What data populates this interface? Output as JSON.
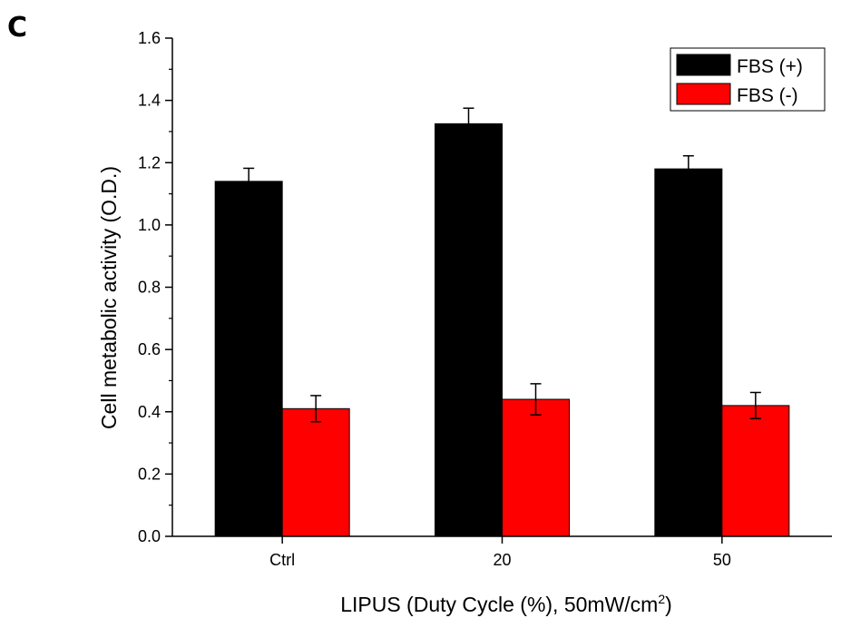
{
  "panel_label": "C",
  "chart_data": {
    "type": "bar",
    "categories": [
      "Ctrl",
      "20",
      "50"
    ],
    "series": [
      {
        "name": "FBS (+)",
        "color": "#000000",
        "values": [
          1.14,
          1.325,
          1.18
        ],
        "errors": [
          0.042,
          0.05,
          0.042
        ]
      },
      {
        "name": "FBS (-)",
        "color": "#ff0000",
        "values": [
          0.41,
          0.44,
          0.42
        ],
        "errors": [
          0.042,
          0.05,
          0.042
        ]
      }
    ],
    "xlabel": {
      "main": "LIPUS (Duty Cycle (%), 50mW/cm",
      "superscript": "2",
      "close": ")"
    },
    "ylabel": "Cell metabolic activity (O.D.)",
    "ylim": [
      0,
      1.6
    ],
    "yticks": [
      "0.0",
      "0.2",
      "0.4",
      "0.6",
      "0.8",
      "1.0",
      "1.2",
      "1.4",
      "1.6"
    ],
    "ytick_values": [
      0,
      0.2,
      0.4,
      0.6,
      0.8,
      1.0,
      1.2,
      1.4,
      1.6
    ],
    "grid": false,
    "legend_position": "top-right"
  }
}
